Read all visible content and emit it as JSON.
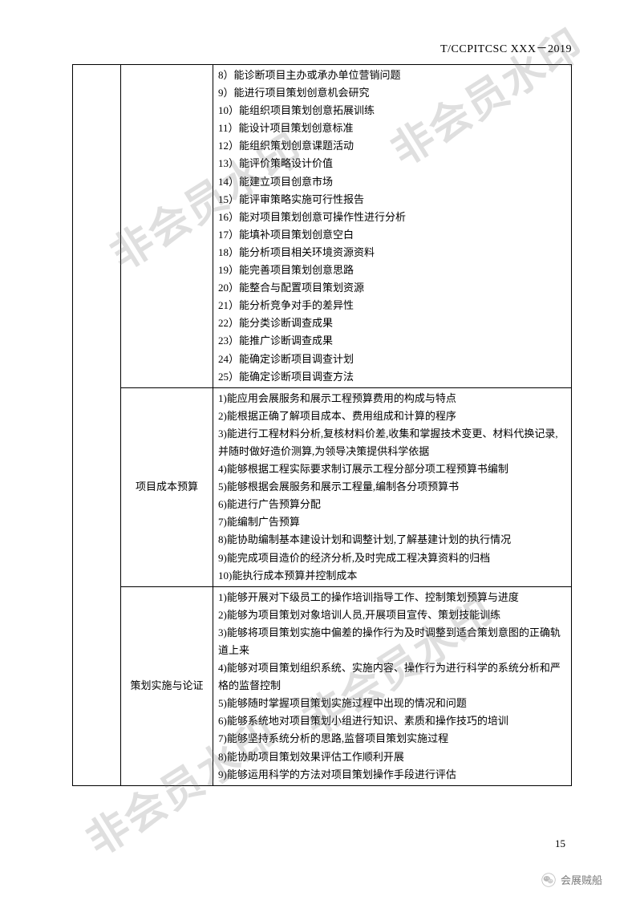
{
  "header": {
    "code": "T/CCPITCSC XXX－2019"
  },
  "watermark_text": "非会员水印",
  "page_number": "15",
  "footer": {
    "tag": "会展贼船"
  },
  "table": {
    "rows": [
      {
        "label": "",
        "items": [
          "8）能诊断项目主办或承办单位营销问题",
          "9）能进行项目策划创意机会研究",
          "10）能组织项目策划创意拓展训练",
          "11）能设计项目策划创意标准",
          "12）能组织策划创意课题活动",
          "13）能评价策略设计价值",
          "14）能建立项目创意市场",
          "15）能评审策略实施可行性报告",
          "16）能对项目策划创意可操作性进行分析",
          "17）能填补项目策划创意空白",
          "18）能分析项目相关环境资源资料",
          "19）能完善项目策划创意思路",
          "20）能整合与配置项目策划资源",
          "21）能分析竞争对手的差异性",
          "22）能分类诊断调查成果",
          "23）能推广诊断调查成果",
          "24）能确定诊断项目调查计划",
          "25）能确定诊断项目调查方法"
        ]
      },
      {
        "label": "项目成本预算",
        "items": [
          "1)能应用会展服务和展示工程预算费用的构成与特点",
          "2)能根据正确了解项目成本、费用组成和计算的程序",
          "3)能进行工程材料分析,复核材料价差,收集和掌握技术变更、材料代换记录,并随时做好造价测算,为领导决策提供科学依据",
          "4)能够根据工程实际要求制订展示工程分部分项工程预算书编制",
          "5)能够根据会展服务和展示工程量,编制各分项预算书",
          "6)能进行广告预算分配",
          "7)能编制广告预算",
          "8)能协助编制基本建设计划和调整计划,了解基建计划的执行情况",
          "9)能完成项目造价的经济分析,及时完成工程决算资料的归档",
          "10)能执行成本预算并控制成本"
        ]
      },
      {
        "label": "策划实施与论证",
        "items": [
          "1)能够开展对下级员工的操作培训指导工作、控制策划预算与进度",
          "2)能够为项目策划对象培训人员,开展项目宣传、策划技能训练",
          "3)能够将项目策划实施中偏差的操作行为及时调整到适合策划意图的正确轨道上来",
          "4)能够对项目策划组织系统、实施内容、操作行为进行科学的系统分析和严格的监督控制",
          "5)能够随时掌握项目策划实施过程中出现的情况和问题",
          "6)能够系统地对项目策划小组进行知识、素质和操作技巧的培训",
          "7)能够坚持系统分析的思路,监督项目策划实施过程",
          "8)能协助项目策划效果评估工作顺利开展",
          "9)能够运用科学的方法对项目策划操作手段进行评估"
        ]
      }
    ]
  }
}
